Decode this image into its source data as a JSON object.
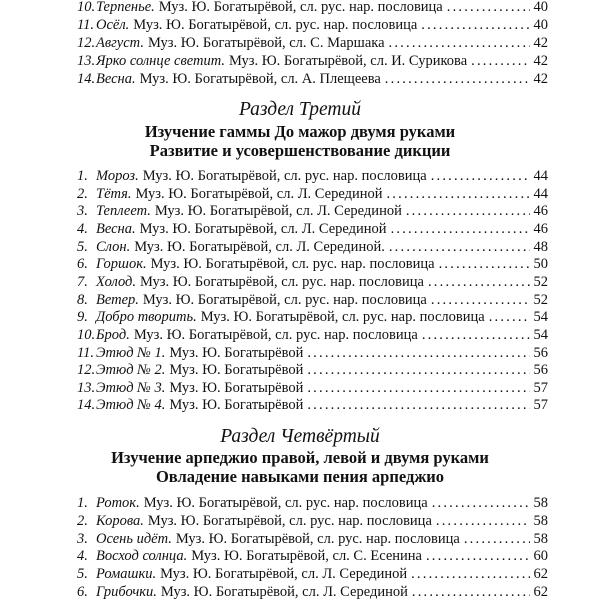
{
  "continued_entries": [
    {
      "num": "10.",
      "title": "Терпенье.",
      "credit": "Муз. Ю. Богатырёвой, сл. рус. нар. пословица",
      "page": "40"
    },
    {
      "num": "11.",
      "title": "Осёл.",
      "credit": "Муз. Ю. Богатырёвой, сл. рус. нар. пословица",
      "page": "40"
    },
    {
      "num": "12.",
      "title": "Август.",
      "credit": "Муз. Ю. Богатырёвой, сл. С. Маршака",
      "page": "42"
    },
    {
      "num": "13.",
      "title": "Ярко солнце светит.",
      "credit": "Муз. Ю. Богатырёвой, сл. И. Сурикова",
      "page": "42"
    },
    {
      "num": "14.",
      "title": "Весна.",
      "credit": "Муз. Ю. Богатырёвой, сл. А. Плещеева",
      "page": "42"
    }
  ],
  "section3": {
    "heading": "Раздел Третий",
    "subtitle1": "Изучение гаммы До мажор двумя руками",
    "subtitle2": "Развитие и усовершенствование дикции",
    "entries": [
      {
        "num": "1.",
        "title": "Мороз.",
        "credit": "Муз. Ю. Богатырёвой, сл. рус. нар. пословица",
        "page": "44"
      },
      {
        "num": "2.",
        "title": "Тётя.",
        "credit": "Муз. Ю. Богатырёвой, сл. Л. Серединой",
        "page": "44"
      },
      {
        "num": "3.",
        "title": "Теплеет.",
        "credit": "Муз. Ю. Богатырёвой, сл. Л. Серединой",
        "page": "46"
      },
      {
        "num": "4.",
        "title": "Весна.",
        "credit": "Муз. Ю. Богатырёвой, сл. Л. Серединой",
        "page": "46"
      },
      {
        "num": "5.",
        "title": "Слон.",
        "credit": "Муз. Ю. Богатырёвой, сл. Л. Серединой.",
        "page": "48"
      },
      {
        "num": "6.",
        "title": "Горшок.",
        "credit": "Муз. Ю. Богатырёвой, сл. рус. нар. пословица",
        "page": "50"
      },
      {
        "num": "7.",
        "title": "Холод.",
        "credit": "Муз. Ю. Богатырёвой, сл. рус. нар. пословица",
        "page": "52"
      },
      {
        "num": "8.",
        "title": "Ветер.",
        "credit": "Муз. Ю. Богатырёвой, сл. рус. нар. пословица",
        "page": "52"
      },
      {
        "num": "9.",
        "title": "Добро творить.",
        "credit": "Муз. Ю. Богатырёвой, сл. рус. нар. пословица",
        "page": "54"
      },
      {
        "num": "10.",
        "title": "Брод.",
        "credit": "Муз. Ю. Богатырёвой, сл. рус. нар. пословица",
        "page": "54"
      },
      {
        "num": "11.",
        "title": "Этюд № 1.",
        "credit": "Муз. Ю. Богатырёвой",
        "page": "56"
      },
      {
        "num": "12.",
        "title": "Этюд № 2.",
        "credit": "Муз. Ю. Богатырёвой",
        "page": "56"
      },
      {
        "num": "13.",
        "title": "Этюд № 3.",
        "credit": "Муз. Ю. Богатырёвой",
        "page": "57"
      },
      {
        "num": "14.",
        "title": "Этюд № 4.",
        "credit": "Муз. Ю. Богатырёвой",
        "page": "57"
      }
    ]
  },
  "section4": {
    "heading": "Раздел Четвёртый",
    "subtitle1": "Изучение арпеджио правой, левой и двумя руками",
    "subtitle2": "Овладение навыками пения арпеджио",
    "entries": [
      {
        "num": "1.",
        "title": "Роток.",
        "credit": "Муз. Ю. Богатырёвой, сл. рус. нар. пословица",
        "page": "58"
      },
      {
        "num": "2.",
        "title": "Корова.",
        "credit": "Муз. Ю. Богатырёвой, сл. рус. нар. пословица",
        "page": "58"
      },
      {
        "num": "3.",
        "title": "Осень идёт.",
        "credit": "Муз. Ю. Богатырёвой, сл. рус. нар. пословица",
        "page": "58"
      },
      {
        "num": "4.",
        "title": "Восход солнца.",
        "credit": "Муз. Ю. Богатырёвой, сл. С. Есенина",
        "page": "60"
      },
      {
        "num": "5.",
        "title": "Ромашки.",
        "credit": "Муз. Ю. Богатырёвой, сл. Л. Серединой",
        "page": "62"
      },
      {
        "num": "6.",
        "title": "Грибочки.",
        "credit": "Муз. Ю. Богатырёвой, сл. Л. Серединой",
        "page": "62"
      }
    ]
  }
}
